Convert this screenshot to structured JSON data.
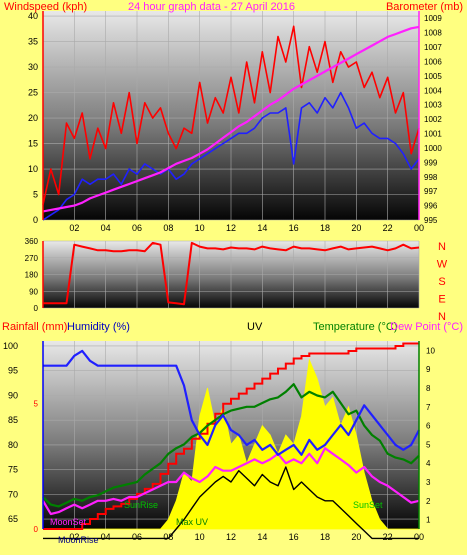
{
  "colors": {
    "background": "#ffff80",
    "wind": "#ff0000",
    "gust": "#ff0000",
    "avg_wind": "#2020ff",
    "barometer": "#ff20ff",
    "direction": "#ff0000",
    "rain": "#ff0000",
    "humidity": "#2020ff",
    "uv": "#ffff00",
    "temperature": "#008000",
    "dewpoint": "#ff20ff",
    "solar": "#000000"
  },
  "chart_data": [
    {
      "type": "line",
      "title": "24 hour graph data - 27 April 2016",
      "ylabel_left": "Windspeed (kph)",
      "ylabel_right": "Barometer (mb)",
      "ylim_left": [
        0,
        41
      ],
      "ylim_right": [
        995,
        1009.5
      ],
      "yticks_left": [
        "0",
        "5",
        "10",
        "15",
        "20",
        "25",
        "30",
        "35",
        "40"
      ],
      "yticks_right": [
        "995",
        "996",
        "997",
        "998",
        "999",
        "1000",
        "1001",
        "1002",
        "1003",
        "1004",
        "1005",
        "1006",
        "1007",
        "1008",
        "1009"
      ],
      "x_ticks": [
        "02",
        "04",
        "06",
        "08",
        "10",
        "12",
        "14",
        "16",
        "18",
        "20",
        "22",
        "00"
      ],
      "x_hours": [
        0,
        0.5,
        1,
        1.5,
        2,
        2.5,
        3,
        3.5,
        4,
        4.5,
        5,
        5.5,
        6,
        6.5,
        7,
        7.5,
        8,
        8.5,
        9,
        9.5,
        10,
        10.5,
        11,
        11.5,
        12,
        12.5,
        13,
        13.5,
        14,
        14.5,
        15,
        15.5,
        16,
        16.5,
        17,
        17.5,
        18,
        18.5,
        19,
        19.5,
        20,
        20.5,
        21,
        21.5,
        22,
        22.5,
        23,
        23.5,
        24
      ],
      "series": [
        {
          "role": "gust",
          "values": [
            3,
            10,
            5,
            19,
            16,
            21,
            12,
            18,
            14,
            23,
            17,
            25,
            15,
            23,
            20,
            22,
            17,
            14,
            18,
            17,
            27,
            19,
            24,
            21,
            28,
            21,
            31,
            23,
            33,
            25,
            36,
            31,
            38,
            26,
            34,
            29,
            35,
            27,
            33,
            30,
            31,
            26,
            29,
            24,
            28,
            21,
            25,
            13,
            18
          ]
        },
        {
          "role": "avg_wind",
          "values": [
            0,
            1,
            2,
            4,
            5,
            8,
            7,
            8,
            8,
            9,
            7,
            10,
            9,
            11,
            10,
            9,
            10,
            8,
            9,
            11,
            12,
            13,
            14,
            15,
            16,
            17,
            17,
            18,
            20,
            21,
            21,
            22,
            11,
            22,
            23,
            21,
            24,
            22,
            25,
            22,
            18,
            19,
            17,
            16,
            16,
            15,
            13,
            10,
            12
          ]
        },
        {
          "role": "barometer",
          "values": [
            995.6,
            995.7,
            995.8,
            995.9,
            996.0,
            996.2,
            996.5,
            996.7,
            996.9,
            997.1,
            997.3,
            997.5,
            997.7,
            997.9,
            998.1,
            998.3,
            998.6,
            998.9,
            999.1,
            999.3,
            999.6,
            999.9,
            1000.3,
            1000.7,
            1001.1,
            1001.5,
            1001.8,
            1002.2,
            1002.6,
            1003.0,
            1003.3,
            1003.7,
            1004.1,
            1004.4,
            1004.7,
            1005.0,
            1005.3,
            1005.6,
            1005.9,
            1006.2,
            1006.5,
            1006.8,
            1007.1,
            1007.4,
            1007.7,
            1007.9,
            1008.1,
            1008.3,
            1008.4
          ]
        }
      ]
    },
    {
      "type": "line",
      "title": "",
      "ylim": [
        0,
        360
      ],
      "yticks": [
        "0",
        "90",
        "180",
        "270",
        "360"
      ],
      "compass_labels": [
        "N",
        "W",
        "S",
        "E",
        "N"
      ],
      "x_hours": [
        0,
        0.5,
        1,
        1.5,
        2,
        2.5,
        3,
        3.5,
        4,
        4.5,
        5,
        5.5,
        6,
        6.5,
        7,
        7.5,
        8,
        8.5,
        9,
        9.5,
        10,
        10.5,
        11,
        11.5,
        12,
        12.5,
        13,
        13.5,
        14,
        14.5,
        15,
        15.5,
        16,
        16.5,
        17,
        17.5,
        18,
        18.5,
        19,
        19.5,
        20,
        20.5,
        21,
        21.5,
        22,
        22.5,
        23,
        23.5,
        24
      ],
      "series": [
        {
          "role": "direction",
          "values": [
            25,
            25,
            25,
            25,
            340,
            330,
            320,
            310,
            310,
            305,
            305,
            310,
            310,
            305,
            350,
            340,
            30,
            25,
            20,
            350,
            330,
            320,
            320,
            315,
            325,
            320,
            320,
            315,
            330,
            320,
            315,
            310,
            330,
            320,
            320,
            315,
            310,
            320,
            330,
            315,
            320,
            325,
            330,
            320,
            310,
            320,
            340,
            320,
            325
          ]
        }
      ]
    },
    {
      "type": "line",
      "title": "UV",
      "ylabel_left": "Rainfall (mm)",
      "ylabel_left2": "Humidity (%)",
      "ylabel_right": "Temperature (°C)",
      "ylabel_right2": "Dew Point (°C)",
      "ylim_humidity": [
        63,
        101
      ],
      "ylim_rain": [
        0,
        7.5
      ],
      "ylim_temp": [
        0.5,
        10.5
      ],
      "yticks_humidity": [
        "65",
        "70",
        "75",
        "80",
        "85",
        "90",
        "95",
        "100"
      ],
      "yticks_rain": [
        "0",
        "5"
      ],
      "yticks_temp": [
        "1",
        "2",
        "3",
        "4",
        "5",
        "6",
        "7",
        "8",
        "9",
        "10"
      ],
      "x_ticks": [
        "02",
        "04",
        "06",
        "08",
        "10",
        "12",
        "14",
        "16",
        "18",
        "20",
        "22",
        "00"
      ],
      "annotations": [
        "MoonRise",
        "MoonSet",
        "SunRise",
        "SunSet",
        "Max UV"
      ],
      "x_hours": [
        0,
        0.5,
        1,
        1.5,
        2,
        2.5,
        3,
        3.5,
        4,
        4.5,
        5,
        5.5,
        6,
        6.5,
        7,
        7.5,
        8,
        8.5,
        9,
        9.5,
        10,
        10.5,
        11,
        11.5,
        12,
        12.5,
        13,
        13.5,
        14,
        14.5,
        15,
        15.5,
        16,
        16.5,
        17,
        17.5,
        18,
        18.5,
        19,
        19.5,
        20,
        20.5,
        21,
        21.5,
        22,
        22.5,
        23,
        23.5,
        24
      ],
      "series": [
        {
          "role": "rain",
          "values": [
            0,
            0,
            0,
            0,
            0,
            0.2,
            0.4,
            0.6,
            0.8,
            0.9,
            1.0,
            1.2,
            1.4,
            1.6,
            1.8,
            2.2,
            2.6,
            3.0,
            3.2,
            3.6,
            3.8,
            4.2,
            4.6,
            5.0,
            5.2,
            5.4,
            5.6,
            5.8,
            6.0,
            6.2,
            6.4,
            6.6,
            6.8,
            6.9,
            7.0,
            7.0,
            7.0,
            7.0,
            7.0,
            7.1,
            7.2,
            7.2,
            7.2,
            7.2,
            7.2,
            7.3,
            7.4,
            7.4,
            7.4
          ]
        },
        {
          "role": "humidity",
          "values": [
            96,
            96,
            96,
            96,
            98,
            99,
            97,
            96,
            96,
            96,
            96,
            96,
            96,
            96,
            96,
            96,
            96,
            96,
            92,
            85,
            82,
            80,
            84,
            86,
            83,
            82,
            80,
            81,
            79,
            80,
            78,
            79,
            80,
            78,
            81,
            79,
            80,
            82,
            84,
            82,
            85,
            88,
            86,
            84,
            82,
            80,
            79,
            80,
            83
          ]
        },
        {
          "role": "temperature",
          "values": [
            2.2,
            1.8,
            1.7,
            1.9,
            2.1,
            2.0,
            2.2,
            2.3,
            2.5,
            2.7,
            2.8,
            2.9,
            3.0,
            3.4,
            3.7,
            4.0,
            4.5,
            4.8,
            5.0,
            5.4,
            5.6,
            6.0,
            6.3,
            6.6,
            6.8,
            6.9,
            7.0,
            7.0,
            7.2,
            7.4,
            7.5,
            7.8,
            8.2,
            7.5,
            7.8,
            7.6,
            7.5,
            7.8,
            7.2,
            6.6,
            6.8,
            6.0,
            5.5,
            5.2,
            4.5,
            4.3,
            4.2,
            4.0,
            4.4
          ]
        },
        {
          "role": "dewpoint",
          "values": [
            2.0,
            1.3,
            1.4,
            1.6,
            1.8,
            1.6,
            1.8,
            2.0,
            2.0,
            2.1,
            2.0,
            2.2,
            2.2,
            2.4,
            2.6,
            2.8,
            3.0,
            3.0,
            3.5,
            3.2,
            3.0,
            3.3,
            3.8,
            3.6,
            3.6,
            3.8,
            4.0,
            4.2,
            4.0,
            4.2,
            4.5,
            4.0,
            4.2,
            4.0,
            4.5,
            4.0,
            4.8,
            4.5,
            4.2,
            3.9,
            3.5,
            3.8,
            3.3,
            3.0,
            2.8,
            2.5,
            2.2,
            1.9,
            2.0
          ]
        },
        {
          "role": "solar",
          "values": [
            0,
            0,
            0,
            0,
            0,
            0,
            0,
            0,
            0,
            0,
            0,
            0,
            0,
            0,
            0,
            0,
            0,
            0.5,
            1.0,
            1.6,
            2.2,
            2.6,
            3.0,
            3.3,
            3.0,
            3.6,
            3.2,
            2.8,
            3.4,
            3.0,
            2.8,
            3.8,
            2.6,
            3.0,
            2.6,
            2.2,
            2.0,
            2.0,
            1.6,
            1.2,
            0.8,
            0.4,
            0,
            0,
            0,
            0,
            0,
            0,
            0
          ]
        },
        {
          "role": "uv",
          "values": [
            0,
            0,
            0,
            0,
            0,
            0,
            0,
            0,
            0,
            0,
            0,
            0,
            0,
            0,
            0,
            0,
            0.5,
            1.5,
            3.0,
            2.5,
            6.0,
            7.5,
            5.5,
            6.5,
            4.5,
            5.0,
            3.5,
            4.5,
            5.5,
            5.0,
            4.0,
            5.0,
            4.5,
            6.0,
            9.0,
            8.0,
            6.5,
            7.0,
            5.5,
            6.5,
            5.0,
            3.0,
            1.5,
            0.5,
            0,
            0,
            0,
            0,
            0
          ]
        }
      ]
    }
  ]
}
